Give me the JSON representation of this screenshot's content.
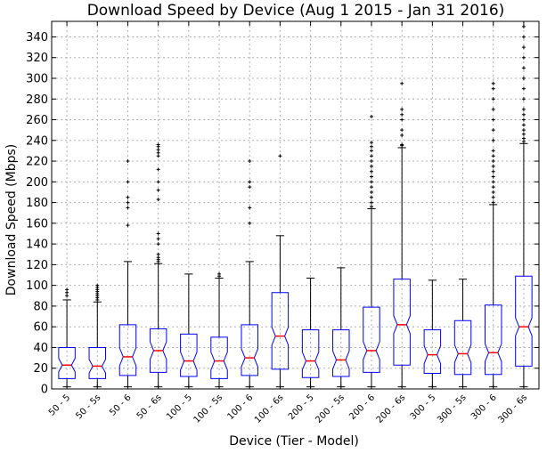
{
  "chart_data": {
    "type": "boxplot",
    "title": "Download Speed by Device (Aug 1 2015 - Jan 31 2016)",
    "xlabel": "Device (Tier - Model)",
    "ylabel": "Download Speed (Mbps)",
    "ylim": [
      0,
      355
    ],
    "yticks": [
      0,
      20,
      40,
      60,
      80,
      100,
      120,
      140,
      160,
      180,
      200,
      220,
      240,
      260,
      280,
      300,
      320,
      340
    ],
    "grid": true,
    "notched": true,
    "categories": [
      "50 - 5",
      "50 - 5s",
      "50 - 6",
      "50 - 6s",
      "100 - 5",
      "100 - 5s",
      "100 - 6",
      "100 - 6s",
      "200 - 5",
      "200 - 5s",
      "200 - 6",
      "200 - 6s",
      "300 - 5",
      "300 - 5s",
      "300 - 6",
      "300 - 6s"
    ],
    "boxes": [
      {
        "whisker_low": 2,
        "q1": 10,
        "median": 23,
        "q3": 40,
        "whisker_high": 86,
        "outliers": [
          90,
          93,
          96
        ]
      },
      {
        "whisker_low": 2,
        "q1": 10,
        "median": 22,
        "q3": 40,
        "whisker_high": 84,
        "outliers": [
          86,
          88,
          90,
          92,
          94,
          96,
          98,
          100
        ]
      },
      {
        "whisker_low": 2,
        "q1": 13,
        "median": 31,
        "q3": 62,
        "whisker_high": 123,
        "outliers": [
          158,
          175,
          180,
          185,
          200,
          220
        ]
      },
      {
        "whisker_low": 2,
        "q1": 16,
        "median": 37,
        "q3": 58,
        "whisker_high": 121,
        "outliers": [
          123,
          125,
          127,
          130,
          140,
          145,
          150,
          183,
          192,
          200,
          212,
          225,
          228,
          231,
          234,
          236
        ]
      },
      {
        "whisker_low": 2,
        "q1": 12,
        "median": 27,
        "q3": 53,
        "whisker_high": 111,
        "outliers": []
      },
      {
        "whisker_low": 2,
        "q1": 10,
        "median": 27,
        "q3": 50,
        "whisker_high": 107,
        "outliers": [
          109,
          111
        ]
      },
      {
        "whisker_low": 2,
        "q1": 13,
        "median": 30,
        "q3": 62,
        "whisker_high": 123,
        "outliers": [
          160,
          175,
          195,
          200,
          220
        ]
      },
      {
        "whisker_low": 2,
        "q1": 19,
        "median": 51,
        "q3": 93,
        "whisker_high": 148,
        "outliers": [
          225
        ]
      },
      {
        "whisker_low": 2,
        "q1": 11,
        "median": 27,
        "q3": 57,
        "whisker_high": 107,
        "outliers": []
      },
      {
        "whisker_low": 2,
        "q1": 12,
        "median": 28,
        "q3": 57,
        "whisker_high": 117,
        "outliers": []
      },
      {
        "whisker_low": 2,
        "q1": 16,
        "median": 37,
        "q3": 79,
        "whisker_high": 174,
        "outliers": [
          176,
          180,
          185,
          190,
          195,
          200,
          205,
          210,
          215,
          220,
          225,
          230,
          234,
          238,
          263
        ]
      },
      {
        "whisker_low": 2,
        "q1": 23,
        "median": 62,
        "q3": 106,
        "whisker_high": 233,
        "outliers": [
          235,
          236,
          245,
          250,
          260,
          265,
          270,
          295
        ]
      },
      {
        "whisker_low": 2,
        "q1": 15,
        "median": 33,
        "q3": 57,
        "whisker_high": 105,
        "outliers": []
      },
      {
        "whisker_low": 2,
        "q1": 14,
        "median": 34,
        "q3": 66,
        "whisker_high": 106,
        "outliers": []
      },
      {
        "whisker_low": 2,
        "q1": 14,
        "median": 35,
        "q3": 81,
        "whisker_high": 178,
        "outliers": [
          180,
          185,
          190,
          195,
          200,
          205,
          210,
          215,
          220,
          225,
          230,
          240,
          250,
          260,
          270,
          280,
          290,
          295
        ]
      },
      {
        "whisker_low": 2,
        "q1": 22,
        "median": 60,
        "q3": 109,
        "whisker_high": 237,
        "outliers": [
          239,
          242,
          246,
          250,
          255,
          260,
          265,
          270,
          280,
          290,
          300,
          310,
          320,
          330,
          340,
          350
        ]
      }
    ]
  },
  "colors": {
    "box": "#0000ff",
    "median": "#ff0000",
    "whisker": "#000000",
    "outlier": "#000000",
    "grid": "#b0b0b0"
  }
}
